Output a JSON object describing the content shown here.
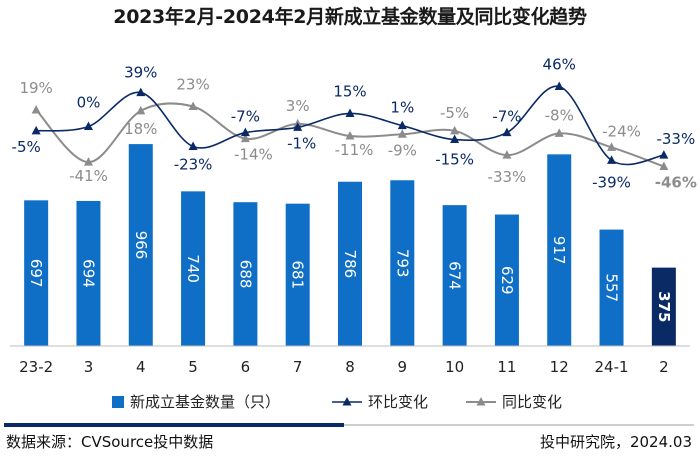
{
  "chart_data": {
    "type": "bar",
    "title": "2023年2月-2024年2月新成立基金数量及同比变化趋势",
    "categories": [
      "23-2",
      "3",
      "4",
      "5",
      "6",
      "7",
      "8",
      "9",
      "10",
      "11",
      "12",
      "24-1",
      "2"
    ],
    "series": [
      {
        "name": "新成立基金数量（只）",
        "type": "bar",
        "values": [
          697,
          694,
          966,
          740,
          688,
          681,
          786,
          793,
          674,
          629,
          917,
          557,
          375
        ],
        "labels": [
          "697",
          "694",
          "966",
          "740",
          "688",
          "681",
          "786",
          "793",
          "674",
          "629",
          "917",
          "557",
          "375"
        ]
      },
      {
        "name": "环比变化",
        "type": "line",
        "values": [
          -5,
          0,
          39,
          -23,
          -7,
          -1,
          15,
          1,
          -15,
          -7,
          46,
          -39,
          -33
        ],
        "labels": [
          "-5%",
          "0%",
          "39%",
          "-23%",
          "-7%",
          "-1%",
          "15%",
          "1%",
          "-15%",
          "-7%",
          "46%",
          "-39%",
          "-33%"
        ]
      },
      {
        "name": "同比变化",
        "type": "line",
        "values": [
          19,
          -41,
          18,
          23,
          -14,
          3,
          -11,
          -9,
          -5,
          -33,
          -8,
          -24,
          -46
        ],
        "labels": [
          "19%",
          "-41%",
          "18%",
          "23%",
          "-14%",
          "3%",
          "-11%",
          "-9%",
          "-5%",
          "-33%",
          "-8%",
          "-24%",
          "-46%"
        ]
      }
    ],
    "xlabel": "",
    "ylabel": "",
    "ylim": [
      0,
      1000
    ],
    "line_ylim": [
      -80,
      65
    ],
    "legend_position": "bottom",
    "colors": {
      "bar": "#0f6fc6",
      "bar_highlight": "#0a2a66",
      "mom": "#0a2a66",
      "yoy": "#8c8c8c"
    }
  },
  "footer": {
    "source": "数据来源：CVSource投中数据",
    "credit": "投中研究院，2024.03"
  }
}
